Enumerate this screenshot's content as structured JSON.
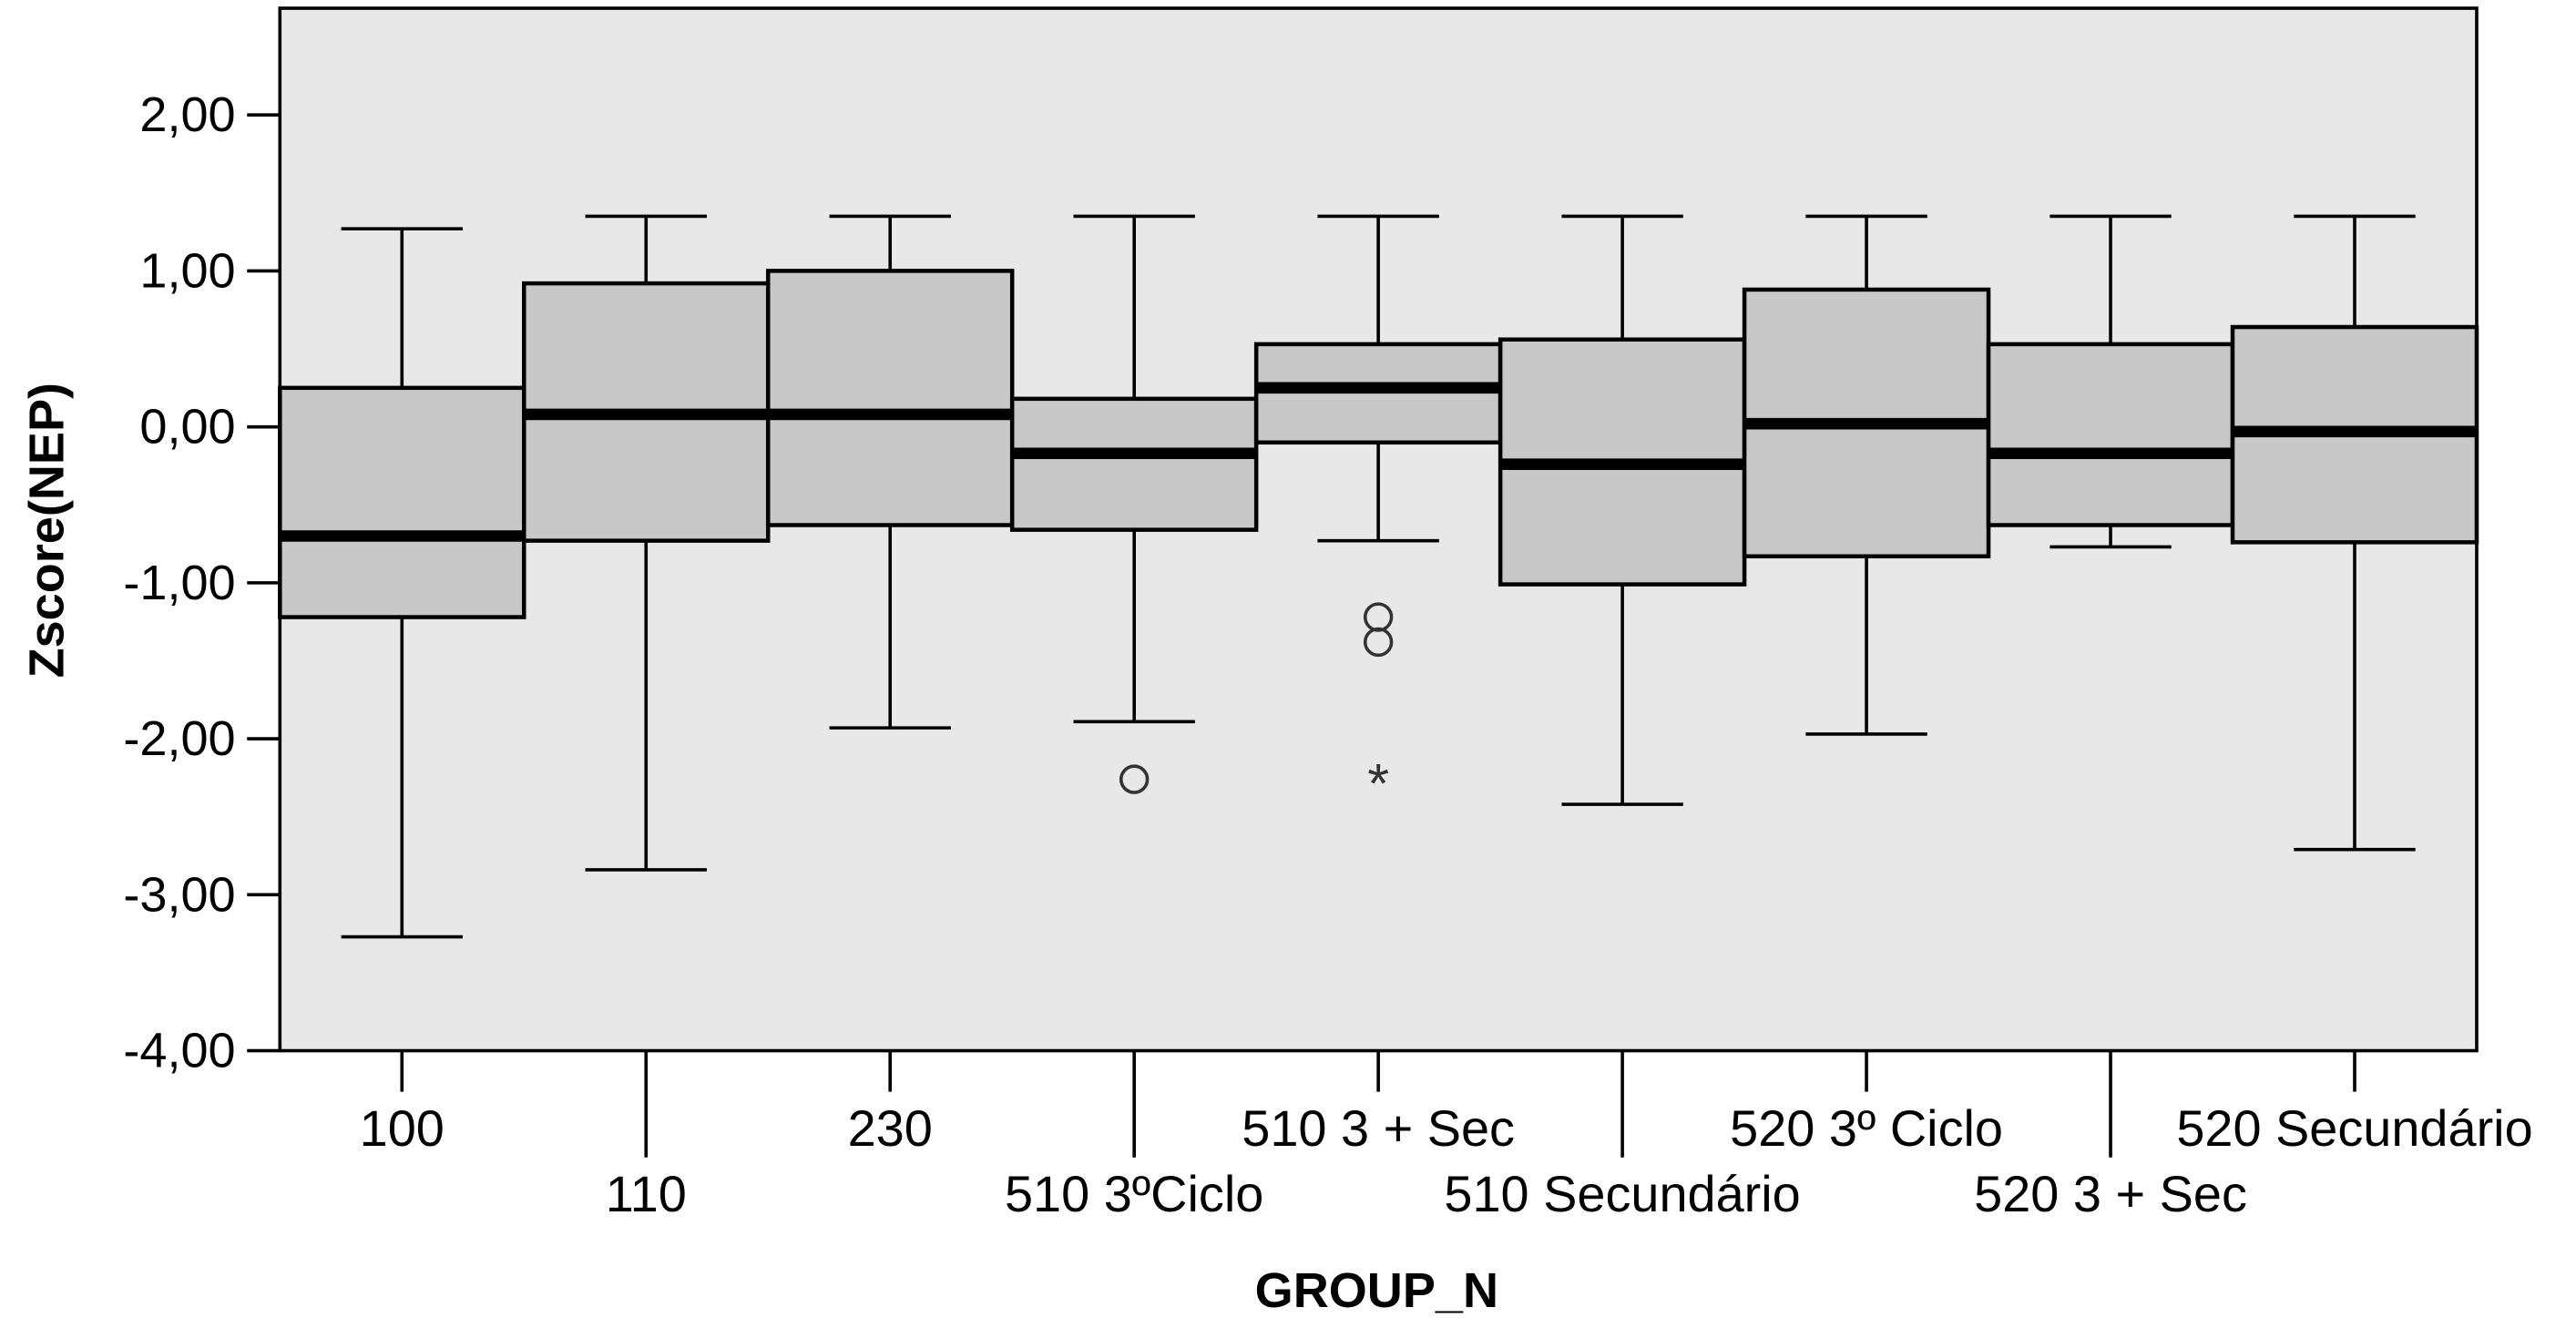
{
  "chart_data": {
    "type": "boxplot",
    "title": "",
    "xlabel": "GROUP_N",
    "ylabel": "Zscore(NEP)",
    "ylim": [
      -4,
      2.7
    ],
    "yticks": [
      2,
      1,
      0,
      -1,
      -2,
      -3,
      -4
    ],
    "ytick_labels": [
      "2,00",
      "1,00",
      "0,00",
      "-1,00",
      "-2,00",
      "-3,00",
      "-4,00"
    ],
    "grid": false,
    "colors": {
      "plot_bg": "#e8e8e8",
      "box_fill": "#c8c8c8",
      "line": "#000000"
    },
    "categories": [
      "100",
      "110",
      "230",
      "510 3ºCiclo",
      "510 3 + Sec",
      "510 Secundário",
      "520 3º Ciclo",
      "520 3 + Sec",
      "520 Secundário"
    ],
    "boxes": [
      {
        "whisker_low": -3.27,
        "q1": -1.22,
        "median": -0.7,
        "q3": 0.25,
        "whisker_high": 1.27,
        "outliers": [],
        "extremes": []
      },
      {
        "whisker_low": -2.84,
        "q1": -0.73,
        "median": 0.08,
        "q3": 0.92,
        "whisker_high": 1.35,
        "outliers": [],
        "extremes": []
      },
      {
        "whisker_low": -1.93,
        "q1": -0.63,
        "median": 0.08,
        "q3": 1.0,
        "whisker_high": 1.35,
        "outliers": [],
        "extremes": []
      },
      {
        "whisker_low": -1.89,
        "q1": -0.66,
        "median": -0.17,
        "q3": 0.18,
        "whisker_high": 1.35,
        "outliers": [
          -2.26
        ],
        "extremes": []
      },
      {
        "whisker_low": -0.73,
        "q1": -0.1,
        "median": 0.25,
        "q3": 0.53,
        "whisker_high": 1.35,
        "outliers": [
          -1.22,
          -1.38
        ],
        "extremes": [
          -2.26
        ]
      },
      {
        "whisker_low": -2.42,
        "q1": -1.01,
        "median": -0.24,
        "q3": 0.56,
        "whisker_high": 1.35,
        "outliers": [],
        "extremes": []
      },
      {
        "whisker_low": -1.97,
        "q1": -0.83,
        "median": 0.02,
        "q3": 0.88,
        "whisker_high": 1.35,
        "outliers": [],
        "extremes": []
      },
      {
        "whisker_low": -0.77,
        "q1": -0.63,
        "median": -0.17,
        "q3": 0.53,
        "whisker_high": 1.35,
        "outliers": [],
        "extremes": []
      },
      {
        "whisker_low": -2.71,
        "q1": -0.74,
        "median": -0.03,
        "q3": 0.64,
        "whisker_high": 1.35,
        "outliers": [],
        "extremes": []
      }
    ]
  }
}
